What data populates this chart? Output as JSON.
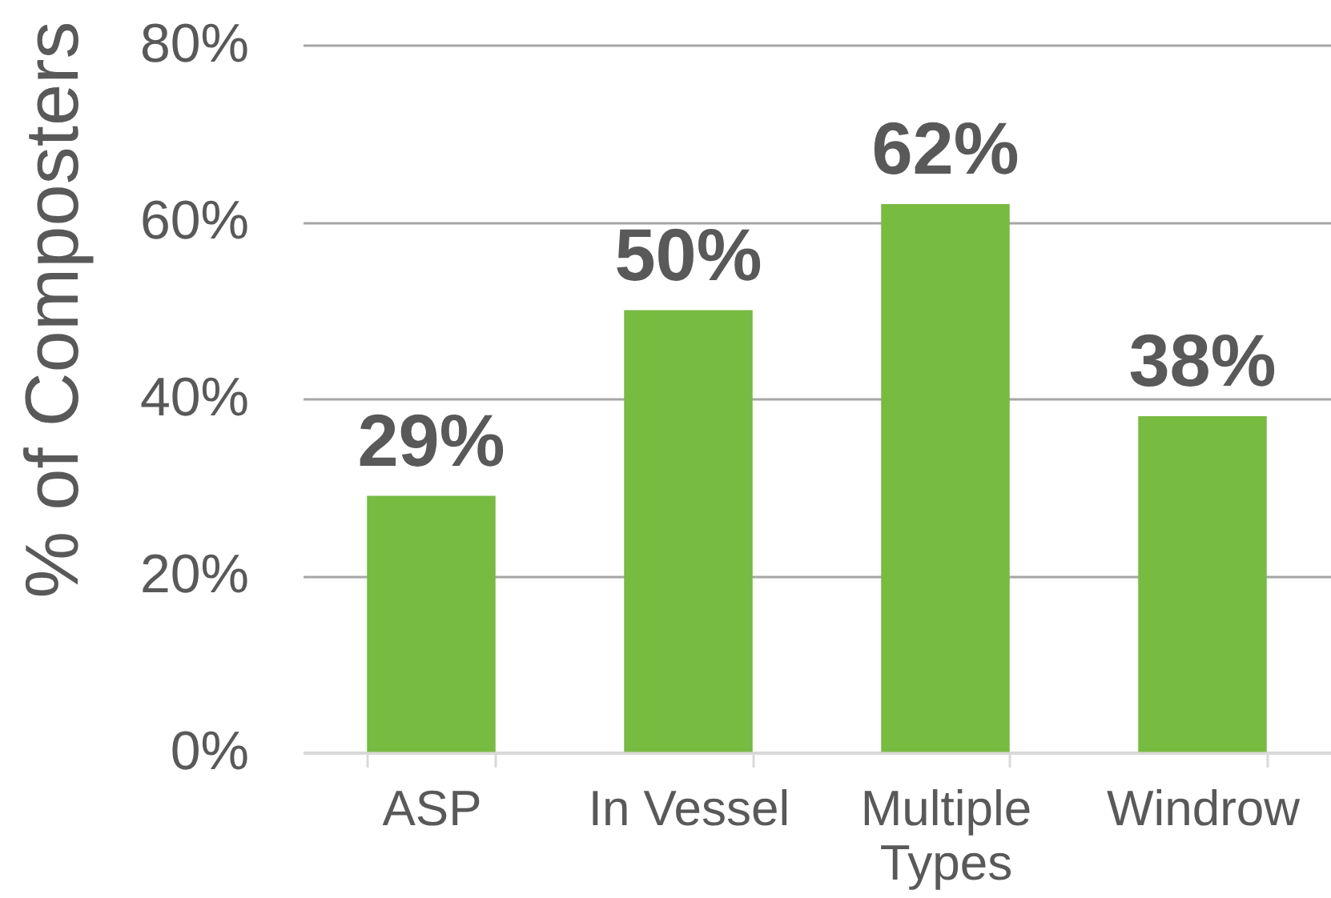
{
  "chart_data": {
    "type": "bar",
    "categories": [
      "ASP",
      "In Vessel",
      "Multiple Types",
      "Windrow"
    ],
    "values": [
      29,
      50,
      62,
      38
    ],
    "color": "#77bb41",
    "value_labels": [
      "29%",
      "50%",
      "62%",
      "38%"
    ],
    "ylabel": "% of Composters",
    "ylim": [
      0,
      80
    ],
    "yticks": [
      {
        "value": 0,
        "label": "0%"
      },
      {
        "value": 20,
        "label": "20%"
      },
      {
        "value": 40,
        "label": "40%"
      },
      {
        "value": 60,
        "label": "60%"
      },
      {
        "value": 80,
        "label": "80%"
      }
    ],
    "grid": "y"
  }
}
